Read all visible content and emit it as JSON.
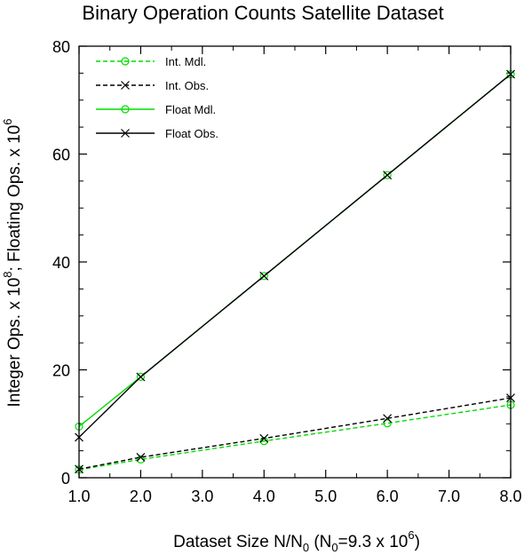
{
  "chart_data": {
    "type": "line",
    "title": "Binary Operation Counts Satellite Dataset",
    "xlabel": {
      "main": "Dataset Size N/N",
      "sub0": "0",
      "paren_open": " (N",
      "sub1": "0",
      "eq": "=9.3 x 10",
      "sup": "6",
      "paren_close": ")"
    },
    "ylabel": {
      "part1": "Integer Ops. x 10",
      "sup1": "8",
      "part2": "; Floating Ops. x 10",
      "sup2": "6"
    },
    "xlim": [
      1.0,
      8.0
    ],
    "ylim": [
      0,
      80
    ],
    "x_ticks": [
      1,
      2,
      3,
      4,
      5,
      6,
      7,
      8
    ],
    "x_tick_labels": [
      "1.0",
      "2.0",
      "3.0",
      "4.0",
      "5.0",
      "6.0",
      "7.0",
      "8.0"
    ],
    "y_ticks": [
      0,
      20,
      40,
      60,
      80
    ],
    "y_tick_labels": [
      "0",
      "20",
      "40",
      "60",
      "80"
    ],
    "legend_position": "top-left",
    "x": [
      1,
      2,
      4,
      6,
      8
    ],
    "series": [
      {
        "name": "Int. Mdl.",
        "values": [
          1.5,
          3.4,
          6.8,
          10.1,
          13.5
        ],
        "color": "#00dd00",
        "dash": "dashed",
        "marker": "circle"
      },
      {
        "name": "Int. Obs.",
        "values": [
          1.6,
          3.8,
          7.3,
          11.0,
          14.8
        ],
        "color": "#000000",
        "dash": "dashed",
        "marker": "cross"
      },
      {
        "name": "Float Mdl.",
        "values": [
          9.5,
          18.7,
          37.4,
          56.1,
          74.8
        ],
        "color": "#00dd00",
        "dash": "solid",
        "marker": "circle"
      },
      {
        "name": "Float Obs.",
        "values": [
          7.5,
          18.7,
          37.4,
          56.1,
          74.8
        ],
        "color": "#000000",
        "dash": "solid",
        "marker": "cross"
      }
    ]
  }
}
